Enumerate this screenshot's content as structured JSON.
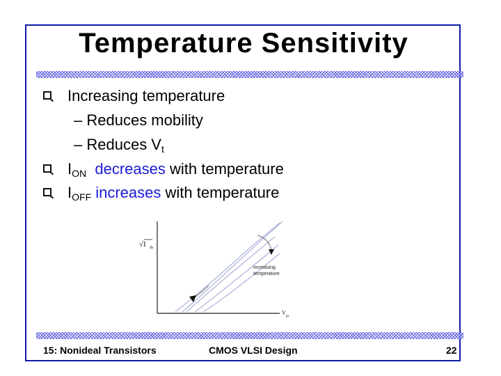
{
  "slide": {
    "title": "Temperature Sensitivity",
    "bullets": [
      {
        "level": 1,
        "text": "Increasing temperature"
      },
      {
        "level": 2,
        "text": "Reduces mobility"
      },
      {
        "level": 2,
        "text": "Reduces V",
        "sub": "t"
      },
      {
        "level": 1,
        "prefix": "I",
        "sub": "ON",
        "highlight": "decreases",
        "rest": " with temperature"
      },
      {
        "level": 1,
        "prefix": "I",
        "sub": "OFF",
        "highlight": " increases",
        "rest": " with temperature"
      }
    ],
    "figure": {
      "y_axis_label": "√I",
      "y_axis_sub": "ds",
      "x_axis_label": "V",
      "x_axis_sub": "gs",
      "annotation_line1": "increasing",
      "annotation_line2": "temperature"
    },
    "footer": {
      "left": "15: Nonideal Transistors",
      "center": "CMOS VLSI Design",
      "right": "22"
    }
  },
  "colors": {
    "frame": "#0d1aa6",
    "accent_text": "#1a1ad6",
    "rule_pattern": "#2b2bd6",
    "curves": "#9aa0d0"
  }
}
